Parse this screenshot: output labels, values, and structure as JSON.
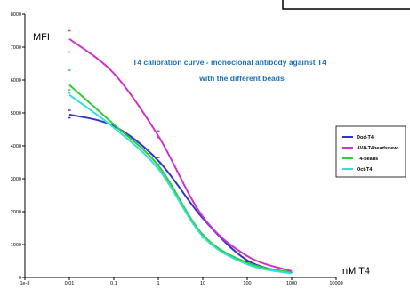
{
  "chart_data": {
    "type": "line",
    "title": "T4 calibration curve -   monoclonal antibody against T4",
    "subtitle": "with the different beads",
    "ylabel": "MFI",
    "xlabel": "nM T4",
    "x_scale": "log",
    "xlim": [
      0.001,
      10000
    ],
    "ylim": [
      0,
      8000
    ],
    "y_ticks": [
      "0",
      "1000",
      "2000",
      "3000",
      "4000",
      "5000",
      "6000",
      "7000",
      "8000"
    ],
    "x_ticks": [
      "1e-3",
      "0.01",
      "0.1",
      "1",
      "10",
      "100",
      "1000",
      "10000"
    ],
    "legend_position": "right",
    "series": [
      {
        "name": "Dod-T4",
        "color": "#3333cc",
        "x": [
          0.01,
          0.1,
          1,
          10,
          100,
          1000
        ],
        "y": [
          4950,
          4600,
          3550,
          1800,
          520,
          130
        ]
      },
      {
        "name": "AVA-T4beadsnew",
        "color": "#cc33cc",
        "x": [
          0.01,
          0.1,
          1,
          10,
          100,
          1000
        ],
        "y": [
          7250,
          6200,
          4300,
          1850,
          650,
          190
        ]
      },
      {
        "name": "T4-beads",
        "color": "#33cc33",
        "x": [
          0.01,
          0.1,
          1,
          10,
          100,
          1000
        ],
        "y": [
          5850,
          4650,
          3400,
          1300,
          450,
          150
        ]
      },
      {
        "name": "Oct-T4",
        "color": "#33dddd",
        "x": [
          0.01,
          0.1,
          1,
          10,
          100,
          1000
        ],
        "y": [
          5550,
          4550,
          3300,
          1250,
          400,
          120
        ]
      }
    ],
    "points": [
      {
        "x": 0.01,
        "y": 7500,
        "color": "#cc33cc"
      },
      {
        "x": 0.01,
        "y": 6850,
        "color": "#cc33cc"
      },
      {
        "x": 0.01,
        "y": 6300,
        "color": "#33cc33"
      },
      {
        "x": 0.01,
        "y": 5700,
        "color": "#33cc33"
      },
      {
        "x": 0.01,
        "y": 5600,
        "color": "#33dddd"
      },
      {
        "x": 0.01,
        "y": 5080,
        "color": "#3333cc"
      },
      {
        "x": 0.01,
        "y": 4850,
        "color": "#3333cc"
      },
      {
        "x": 1,
        "y": 4450,
        "color": "#cc33cc"
      },
      {
        "x": 1,
        "y": 4250,
        "color": "#cc33cc"
      },
      {
        "x": 1,
        "y": 3650,
        "color": "#3333cc"
      },
      {
        "x": 1,
        "y": 3450,
        "color": "#33cc33"
      },
      {
        "x": 1,
        "y": 3300,
        "color": "#33dddd"
      },
      {
        "x": 10,
        "y": 1300,
        "color": "#33cc33"
      },
      {
        "x": 10,
        "y": 1200,
        "color": "#33dddd"
      },
      {
        "x": 100,
        "y": 650,
        "color": "#cc33cc"
      },
      {
        "x": 100,
        "y": 480,
        "color": "#3333cc"
      },
      {
        "x": 1000,
        "y": 160,
        "color": "#33cc33"
      }
    ]
  },
  "colors": {
    "title": "#1a6fb5",
    "axis": "#000000"
  }
}
